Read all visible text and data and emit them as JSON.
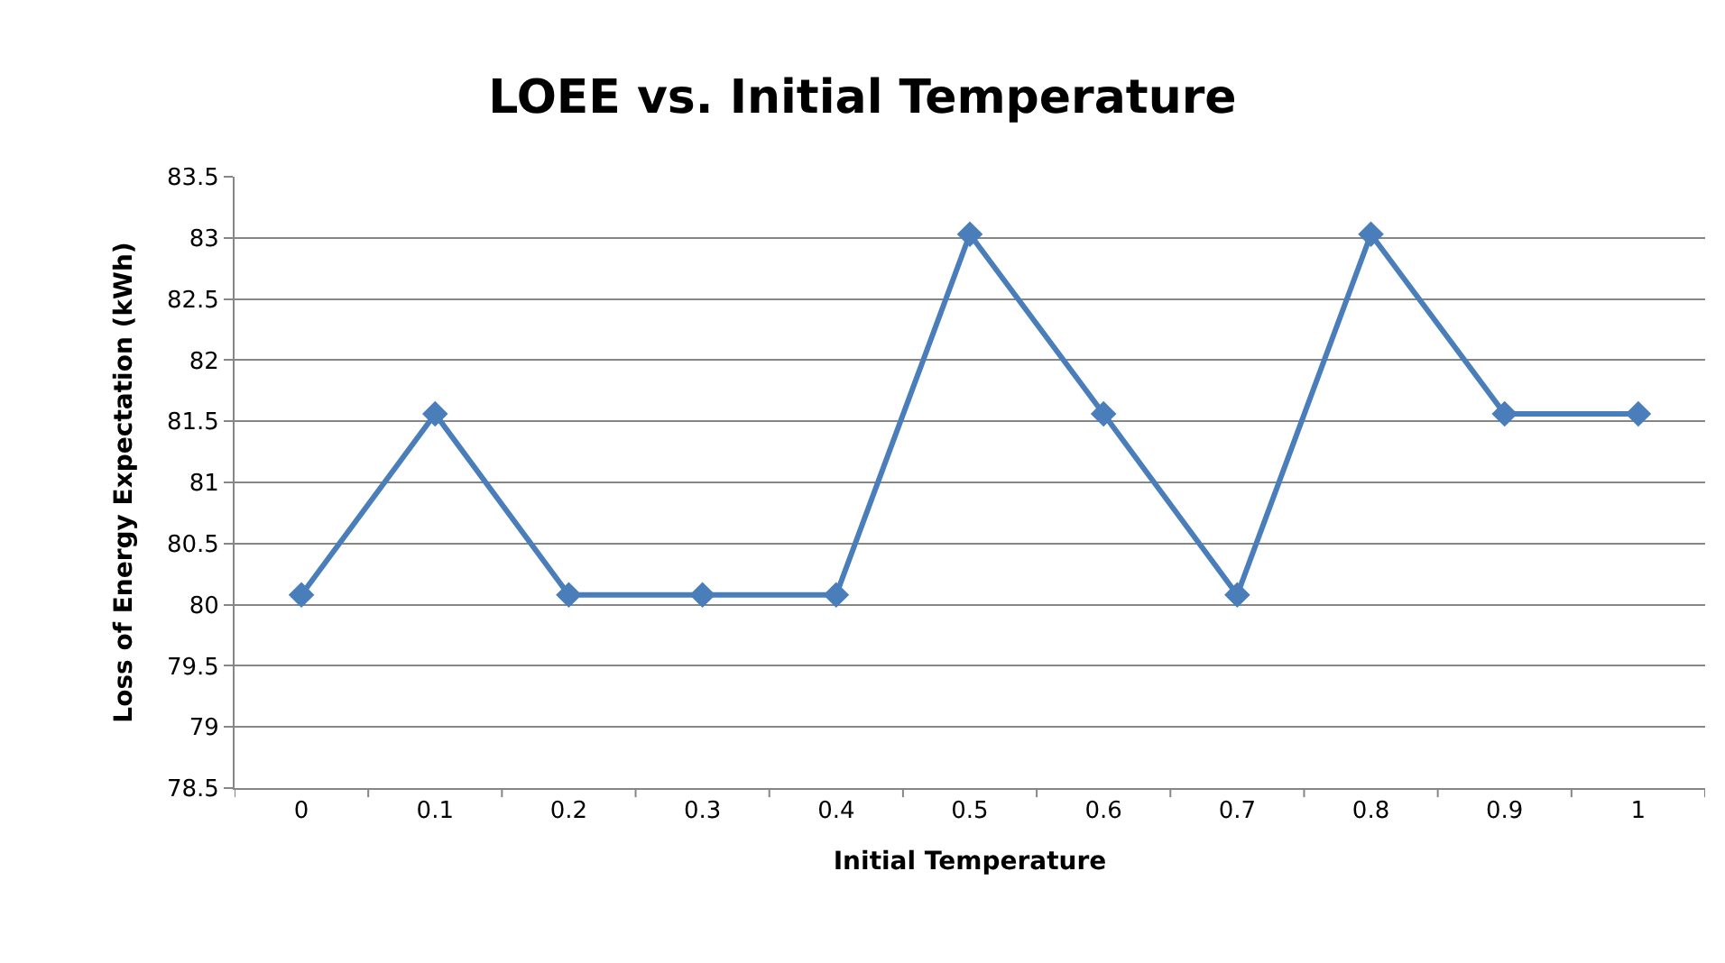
{
  "chart_data": {
    "type": "line",
    "title": "LOEE vs. Initial Temperature",
    "xlabel": "Initial Temperature",
    "ylabel": "Loss of Energy Expectation (kWh)",
    "categories": [
      "0",
      "0.1",
      "0.2",
      "0.3",
      "0.4",
      "0.5",
      "0.6",
      "0.7",
      "0.8",
      "0.9",
      "1"
    ],
    "series": [
      {
        "color": "#4a7ebb",
        "values": [
          80.08,
          81.56,
          80.08,
          80.08,
          80.08,
          83.03,
          81.56,
          80.08,
          83.03,
          81.56,
          81.56
        ]
      }
    ],
    "ylim": [
      78.5,
      83.5
    ],
    "yticks": [
      78.5,
      79,
      79.5,
      80,
      80.5,
      81,
      81.5,
      82,
      82.5,
      83,
      83.5
    ],
    "grid": "y",
    "marker": "diamond",
    "line_style": "solid"
  }
}
